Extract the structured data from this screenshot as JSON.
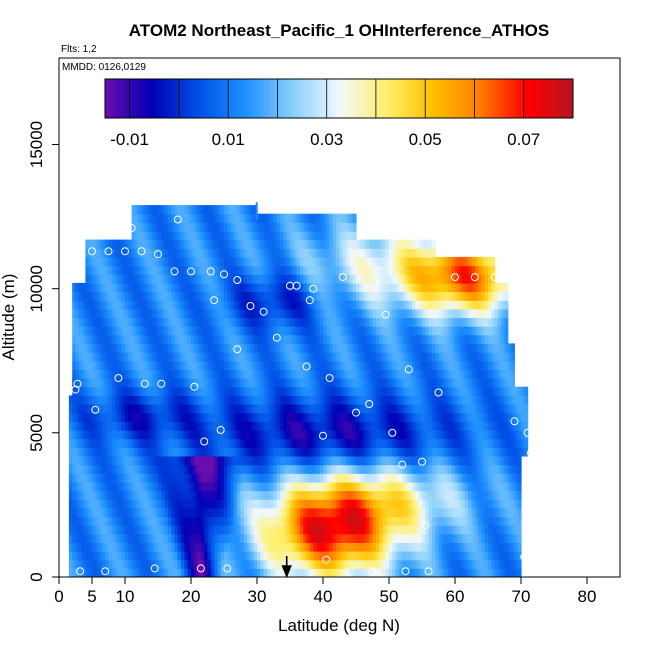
{
  "chart_data": {
    "type": "heatmap",
    "title": "ATOM2 Northeast_Pacific_1 OHInterference_ATHOS",
    "flights_label": "Flts: 1,2",
    "dates_label": "MMDD: 0126,0129",
    "xlabel": "Latitude (deg N)",
    "ylabel": "Altitude (m)",
    "xlim": [
      0,
      85
    ],
    "ylim": [
      0,
      18000
    ],
    "x_ticks": [
      0,
      5,
      10,
      20,
      30,
      40,
      50,
      60,
      70,
      80
    ],
    "y_ticks": [
      0,
      5000,
      10000,
      15000
    ],
    "colorbar": {
      "range": [
        -0.015,
        0.08
      ],
      "tick_values": [
        -0.01,
        0.01,
        0.03,
        0.05,
        0.07
      ],
      "tick_labels": [
        "-0.01",
        "0.01",
        "0.03",
        "0.05",
        "0.07"
      ],
      "colors": [
        "#6a0dad",
        "#0000b4",
        "#0050e6",
        "#1e90ff",
        "#87cefa",
        "#f0f8ff",
        "#fff06e",
        "#ffc000",
        "#ff7f00",
        "#ff0000",
        "#b4141e"
      ]
    },
    "profile_marker_latitude": 34.5,
    "sample_points": [
      [
        2.5,
        6500
      ],
      [
        2.8,
        6700
      ],
      [
        3.2,
        200
      ],
      [
        5.0,
        11300
      ],
      [
        5.5,
        5800
      ],
      [
        7.0,
        200
      ],
      [
        7.5,
        11300
      ],
      [
        9.0,
        6900
      ],
      [
        10.0,
        11300
      ],
      [
        11.0,
        12100
      ],
      [
        12.5,
        11300
      ],
      [
        13.0,
        6700
      ],
      [
        14.5,
        300
      ],
      [
        15.0,
        11200
      ],
      [
        15.5,
        6700
      ],
      [
        17.5,
        10600
      ],
      [
        18.0,
        12400
      ],
      [
        20.0,
        10600
      ],
      [
        20.5,
        6600
      ],
      [
        21.5,
        300
      ],
      [
        22.0,
        4700
      ],
      [
        23.0,
        10600
      ],
      [
        23.5,
        9600
      ],
      [
        24.5,
        5100
      ],
      [
        25.0,
        10500
      ],
      [
        25.5,
        300
      ],
      [
        27.0,
        7900
      ],
      [
        27.0,
        10300
      ],
      [
        29.0,
        9400
      ],
      [
        31.0,
        9200
      ],
      [
        33.0,
        8300
      ],
      [
        35.0,
        10100
      ],
      [
        36.0,
        10100
      ],
      [
        37.5,
        7300
      ],
      [
        38.0,
        9600
      ],
      [
        38.5,
        10000
      ],
      [
        40.0,
        4900
      ],
      [
        40.5,
        600
      ],
      [
        41.0,
        6900
      ],
      [
        43.0,
        10400
      ],
      [
        45.0,
        5700
      ],
      [
        47.0,
        6000
      ],
      [
        47.5,
        200
      ],
      [
        49.5,
        9100
      ],
      [
        50.5,
        5000
      ],
      [
        52.0,
        3900
      ],
      [
        52.5,
        200
      ],
      [
        53.0,
        7200
      ],
      [
        55.0,
        4000
      ],
      [
        55.5,
        1800
      ],
      [
        56.0,
        200
      ],
      [
        57.5,
        6400
      ],
      [
        60.0,
        10400
      ],
      [
        63.0,
        10400
      ],
      [
        66.0,
        10400
      ],
      [
        69.0,
        5400
      ],
      [
        70.5,
        700
      ],
      [
        71.0,
        5000
      ],
      [
        71.5,
        4300
      ]
    ]
  }
}
